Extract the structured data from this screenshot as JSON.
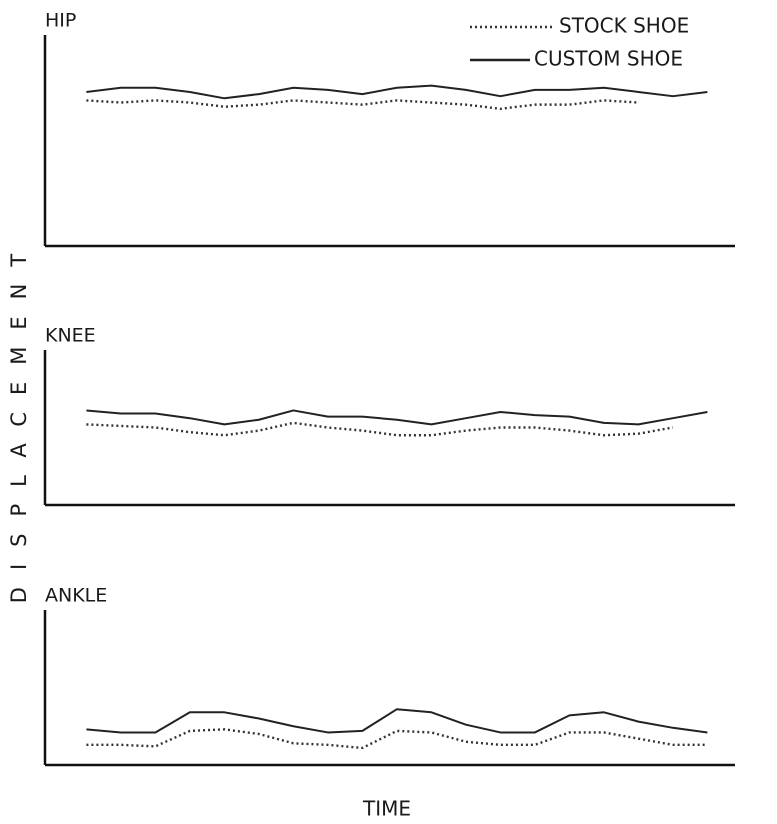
{
  "xlabel": "TIME",
  "ylabel": "DISPLACEMENT",
  "chart_data": [
    {
      "type": "line",
      "title": "HIP",
      "xlim": [
        0,
        100
      ],
      "ylim": [
        0,
        100
      ],
      "x": [
        6,
        11,
        16,
        21,
        26,
        31,
        36,
        41,
        46,
        51,
        56,
        61,
        66,
        71,
        76,
        81,
        86,
        91,
        96
      ],
      "series": [
        {
          "name": "STOCK SHOE",
          "style": "dotted",
          "color": "#333333",
          "values": [
            69,
            68,
            69,
            68,
            66,
            67,
            69,
            68,
            67,
            69,
            68,
            67,
            65,
            67,
            67,
            69,
            68,
            null,
            null
          ]
        },
        {
          "name": "CUSTOM SHOE",
          "style": "solid",
          "color": "#222222",
          "values": [
            73,
            75,
            75,
            73,
            70,
            72,
            75,
            74,
            72,
            75,
            76,
            74,
            71,
            74,
            74,
            75,
            73,
            71,
            73
          ]
        }
      ]
    },
    {
      "type": "line",
      "title": "KNEE",
      "xlim": [
        0,
        100
      ],
      "ylim": [
        0,
        100
      ],
      "x": [
        6,
        11,
        16,
        21,
        26,
        31,
        36,
        41,
        46,
        51,
        56,
        61,
        66,
        71,
        76,
        81,
        86,
        91,
        96
      ],
      "series": [
        {
          "style": "dotted",
          "color": "#333333",
          "values": [
            52,
            51,
            50,
            47,
            45,
            48,
            53,
            50,
            48,
            45,
            45,
            48,
            50,
            50,
            48,
            45,
            46,
            50,
            null
          ]
        },
        {
          "style": "solid",
          "color": "#222222",
          "values": [
            61,
            59,
            59,
            56,
            52,
            55,
            61,
            57,
            57,
            55,
            52,
            56,
            60,
            58,
            57,
            53,
            52,
            56,
            60
          ]
        }
      ]
    },
    {
      "type": "line",
      "title": "ANKLE",
      "xlim": [
        0,
        100
      ],
      "ylim": [
        0,
        100
      ],
      "x": [
        6,
        11,
        16,
        21,
        26,
        31,
        36,
        41,
        46,
        51,
        56,
        61,
        66,
        71,
        76,
        81,
        86,
        91,
        96
      ],
      "series": [
        {
          "style": "dotted",
          "color": "#333333",
          "values": [
            13,
            13,
            12,
            22,
            23,
            20,
            14,
            13,
            11,
            22,
            21,
            15,
            13,
            13,
            21,
            21,
            17,
            13,
            13
          ]
        },
        {
          "style": "solid",
          "color": "#222222",
          "values": [
            23,
            21,
            21,
            34,
            34,
            30,
            25,
            21,
            22,
            36,
            34,
            26,
            21,
            21,
            32,
            34,
            28,
            24,
            21
          ]
        }
      ]
    }
  ]
}
